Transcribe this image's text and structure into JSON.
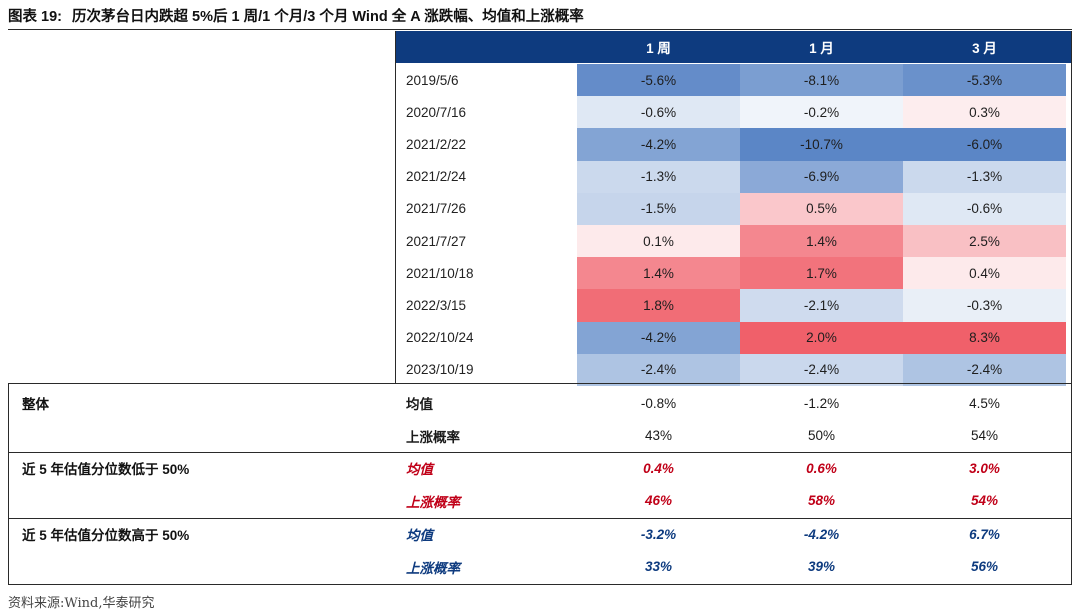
{
  "title": {
    "label": "图表 19:",
    "text": "历次茅台日内跌超 5%后 1 周/1 个月/3 个月 Wind 全 A 涨跌幅、均值和上涨概率"
  },
  "header": {
    "columns": [
      "1 周",
      "1 月",
      "3 月"
    ]
  },
  "colors": {
    "header_bg": "#0e3b7f",
    "red_text": "#c00018",
    "blue_text": "#0e3b7f",
    "heat_neg_max": "#5b86c6",
    "heat_pos_max": "#f0606a"
  },
  "rows": [
    {
      "date": "2019/5/6",
      "values": [
        "-5.6%",
        "-8.1%",
        "-5.3%"
      ]
    },
    {
      "date": "2020/7/16",
      "values": [
        "-0.6%",
        "-0.2%",
        "0.3%"
      ]
    },
    {
      "date": "2021/2/22",
      "values": [
        "-4.2%",
        "-10.7%",
        "-6.0%"
      ]
    },
    {
      "date": "2021/2/24",
      "values": [
        "-1.3%",
        "-6.9%",
        "-1.3%"
      ]
    },
    {
      "date": "2021/7/26",
      "values": [
        "-1.5%",
        "0.5%",
        "-0.6%"
      ]
    },
    {
      "date": "2021/7/27",
      "values": [
        "0.1%",
        "1.4%",
        "2.5%"
      ]
    },
    {
      "date": "2021/10/18",
      "values": [
        "1.4%",
        "1.7%",
        "0.4%"
      ]
    },
    {
      "date": "2022/3/15",
      "values": [
        "1.8%",
        "-2.1%",
        "-0.3%"
      ]
    },
    {
      "date": "2022/10/24",
      "values": [
        "-4.2%",
        "2.0%",
        "8.3%"
      ]
    },
    {
      "date": "2023/10/19",
      "values": [
        "-2.4%",
        "-2.4%",
        "-2.4%"
      ]
    }
  ],
  "summary": [
    {
      "group": "整体",
      "style": "plain",
      "metrics": [
        {
          "name": "均值",
          "values": [
            "-0.8%",
            "-1.2%",
            "4.5%"
          ]
        },
        {
          "name": "上涨概率",
          "values": [
            "43%",
            "50%",
            "54%"
          ]
        }
      ]
    },
    {
      "group": "近 5 年估值分位数低于 50%",
      "style": "red",
      "metrics": [
        {
          "name": "均值",
          "values": [
            "0.4%",
            "0.6%",
            "3.0%"
          ]
        },
        {
          "name": "上涨概率",
          "values": [
            "46%",
            "58%",
            "54%"
          ]
        }
      ]
    },
    {
      "group": "近 5 年估值分位数高于 50%",
      "style": "blue",
      "metrics": [
        {
          "name": "均值",
          "values": [
            "-3.2%",
            "-4.2%",
            "6.7%"
          ]
        },
        {
          "name": "上涨概率",
          "values": [
            "33%",
            "39%",
            "56%"
          ]
        }
      ]
    }
  ],
  "source": "资料来源:Wind,华泰研究"
}
